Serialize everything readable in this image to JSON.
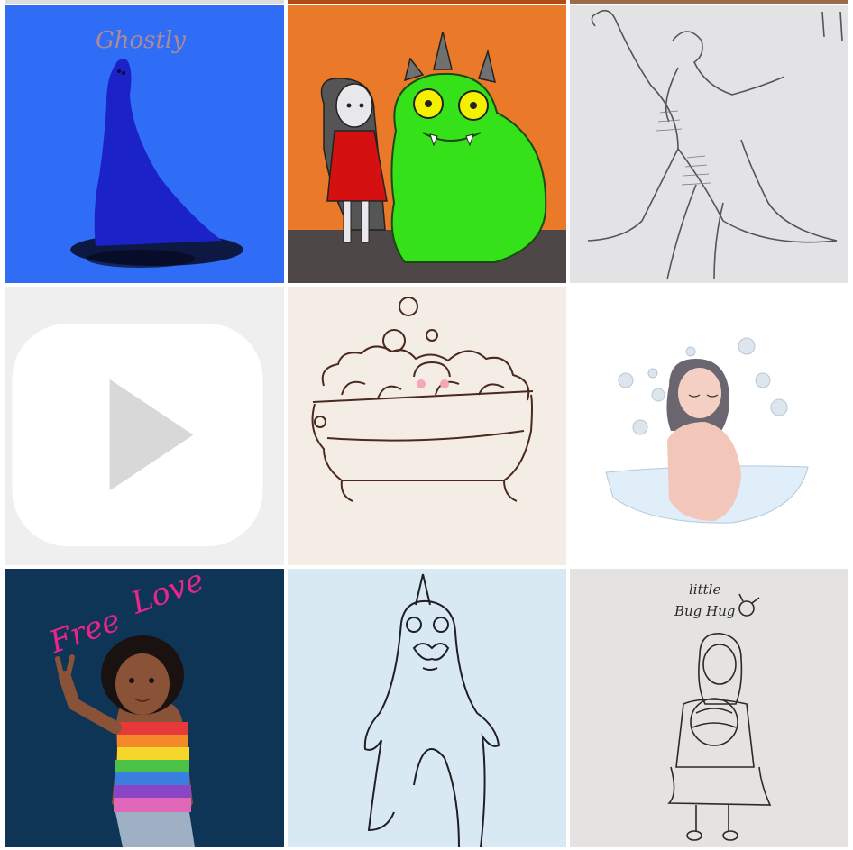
{
  "grid": {
    "posts": [
      {
        "id": "ghostly",
        "art_text": "Ghostly",
        "type": "image"
      },
      {
        "id": "monster-friend",
        "type": "image"
      },
      {
        "id": "dinosaur-rider-sketch",
        "type": "image"
      },
      {
        "id": "lonely-figure-sketch",
        "type": "reel",
        "icon": "reel-icon"
      },
      {
        "id": "bubble-bath",
        "type": "image"
      },
      {
        "id": "girl-in-bowl",
        "type": "image"
      },
      {
        "id": "free-love",
        "art_text_1": "Free",
        "art_text_2": "Love",
        "type": "image"
      },
      {
        "id": "unicorn-ghost-sketch",
        "type": "image"
      },
      {
        "id": "little-bug-hug",
        "art_text_1": "little",
        "art_text_2": "Bug Hug",
        "type": "image"
      }
    ]
  },
  "colors": {
    "ghostly_bg": "#2f6df6",
    "ghost_blue": "#1b22c8",
    "monster_bg": "#ea7a2a",
    "monster_green": "#35e21a",
    "dress_red": "#d51010",
    "paper_gray": "#e3e3e6",
    "paper_cream": "#f4ede6",
    "navy": "#0e3556",
    "pink_text": "#e8268a",
    "light_blue_paper": "#d9e9f4"
  }
}
